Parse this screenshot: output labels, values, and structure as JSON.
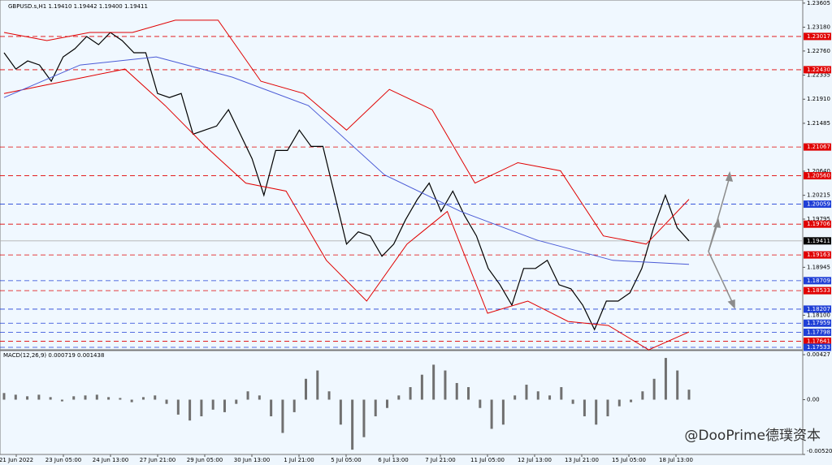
{
  "chart_data": [
    {
      "type": "line",
      "title": "GBPUSD.s,H1  1.19410 1.19442 1.19400 1.19411",
      "series": [
        {
          "name": "Close",
          "color": "#000000",
          "values": [
            1.22729,
            1.22442,
            1.22585,
            1.22514,
            1.22227,
            1.22657,
            1.22801,
            1.23016,
            1.22873,
            1.23088,
            1.22944,
            1.22729,
            1.22729,
            1.22011,
            1.21939,
            1.22011,
            1.21293,
            1.21365,
            1.21437,
            1.21724,
            1.21293,
            1.20862,
            1.20216,
            1.21006,
            1.21006,
            1.21365,
            1.21078,
            1.21078,
            1.20216,
            1.19354,
            1.1957,
            1.19498,
            1.19139,
            1.19354,
            1.19785,
            1.20144,
            1.20431,
            1.19929,
            1.20288,
            1.19857,
            1.19498,
            1.18924,
            1.18636,
            1.18277,
            1.18924,
            1.18924,
            1.19067,
            1.18636,
            1.18565,
            1.18277,
            1.17847,
            1.18349,
            1.18349,
            1.18493,
            1.18924,
            1.19642,
            1.20216,
            1.19642,
            1.19411
          ]
        },
        {
          "name": "Upper band",
          "color": "#e00000",
          "values": [
            1.23088,
            1.22944,
            1.23088,
            1.23088,
            1.23303,
            1.23303,
            1.22227,
            1.22011,
            1.21365,
            1.22083,
            1.21724,
            1.20431,
            1.2079,
            1.20646,
            1.19498,
            1.19354,
            1.20144
          ]
        },
        {
          "name": "Lower band",
          "color": "#e00000",
          "values": [
            1.22011,
            1.22155,
            1.22298,
            1.22442,
            1.21796,
            1.21078,
            1.20431,
            1.20288,
            1.19067,
            1.18349,
            1.19354,
            1.19929,
            1.18134,
            1.18349,
            1.1799,
            1.17918,
            1.17488,
            1.17804
          ]
        },
        {
          "name": "Moving average",
          "color": "#4a5ad6",
          "values": [
            1.21939,
            1.22514,
            1.22657,
            1.22298,
            1.21796,
            1.20575,
            1.19929,
            1.19426,
            1.19067,
            1.18996
          ]
        }
      ],
      "ylim": [
        1.1749,
        1.2366
      ],
      "yticks": [
        1.23605,
        {
          "value": 1.2318,
          "label": "1.23180"
        },
        {
          "value": 1.2276,
          "label": "1.22760"
        },
        1.22335,
        {
          "value": 1.2191,
          "label": "1.21910"
        },
        1.21485,
        {
          "value": 1.2064,
          "label": "1.20640"
        },
        1.20215,
        1.19795,
        1.18945,
        {
          "value": 1.181,
          "label": "1.18100"
        }
      ],
      "levels": [
        {
          "value": 1.23017,
          "label": "1.23017",
          "color": "#e00000"
        },
        {
          "value": 1.2243,
          "label": "1.22430",
          "color": "#e00000"
        },
        {
          "value": 1.21067,
          "label": "1.21067",
          "color": "#e00000"
        },
        {
          "value": 1.2056,
          "label": "1.20560",
          "color": "#e00000"
        },
        {
          "value": 1.20059,
          "label": "1.20059",
          "color": "#1f3fd6"
        },
        {
          "value": 1.19706,
          "label": "1.19706",
          "color": "#e00000"
        },
        {
          "value": 1.19163,
          "label": "1.19163",
          "color": "#e00000"
        },
        {
          "value": 1.18709,
          "label": "1.18709",
          "color": "#1f3fd6"
        },
        {
          "value": 1.18533,
          "label": "1.18533",
          "color": "#e00000"
        },
        {
          "value": 1.18207,
          "label": "1.18207",
          "color": "#1f3fd6"
        },
        {
          "value": 1.17959,
          "label": "1.17959",
          "color": "#1f3fd6"
        },
        {
          "value": 1.17798,
          "label": "1.17798",
          "color": "#1f3fd6"
        },
        {
          "value": 1.17641,
          "label": "1.17641",
          "color": "#e00000"
        },
        {
          "value": 1.17533,
          "label": "1.17533",
          "color": "#1f3fd6"
        }
      ],
      "current": {
        "value": 1.19411,
        "label": "1.19411"
      },
      "x_labels": [
        "21 Jun 2022",
        "23 Jun 05:00",
        "24 Jun 13:00",
        "27 Jun 21:00",
        "29 Jun 05:00",
        "30 Jun 13:00",
        "1 Jul 21:00",
        "5 Jul 05:00",
        "6 Jul 13:00",
        "7 Jul 21:00",
        "11 Jul 05:00",
        "12 Jul 13:00",
        "13 Jul 21:00",
        "15 Jul 05:00",
        "18 Jul 13:00"
      ],
      "watermark": "@DooPrime德璞资本"
    },
    {
      "type": "bar",
      "title": "MACD(12,26,9) 0.000719 0.001438",
      "color": "#707070",
      "values": [
        0.00063,
        0.00047,
        0.00032,
        0.00047,
        0.00024,
        -0.00016,
        0.00032,
        0.0004,
        0.00047,
        0.00024,
        0.00016,
        -0.00024,
        0.00024,
        0.0004,
        -0.0004,
        -0.00142,
        -0.00198,
        -0.00158,
        -0.00095,
        -0.00119,
        -0.0004,
        0.00079,
        0.0004,
        -0.00158,
        -0.00316,
        -0.00119,
        0.00198,
        0.00277,
        0.00079,
        -0.00237,
        -0.00475,
        -0.00356,
        -0.00158,
        -0.00079,
        0.0004,
        0.00119,
        0.00237,
        0.00332,
        0.00277,
        0.00158,
        0.00119,
        -0.00079,
        -0.00277,
        -0.00237,
        0.0004,
        0.00142,
        0.00079,
        0.0004,
        0.00119,
        -0.0004,
        -0.00158,
        -0.00237,
        -0.00158,
        -0.00063,
        -0.00024,
        0.00079,
        0.00198,
        0.00396,
        0.00277,
        0.00095
      ],
      "ylim": [
        -0.005202,
        0.00466
      ],
      "yticks": [
        0.00427,
        {
          "value": 0,
          "label": "0.00"
        },
        -0.005202
      ]
    }
  ]
}
